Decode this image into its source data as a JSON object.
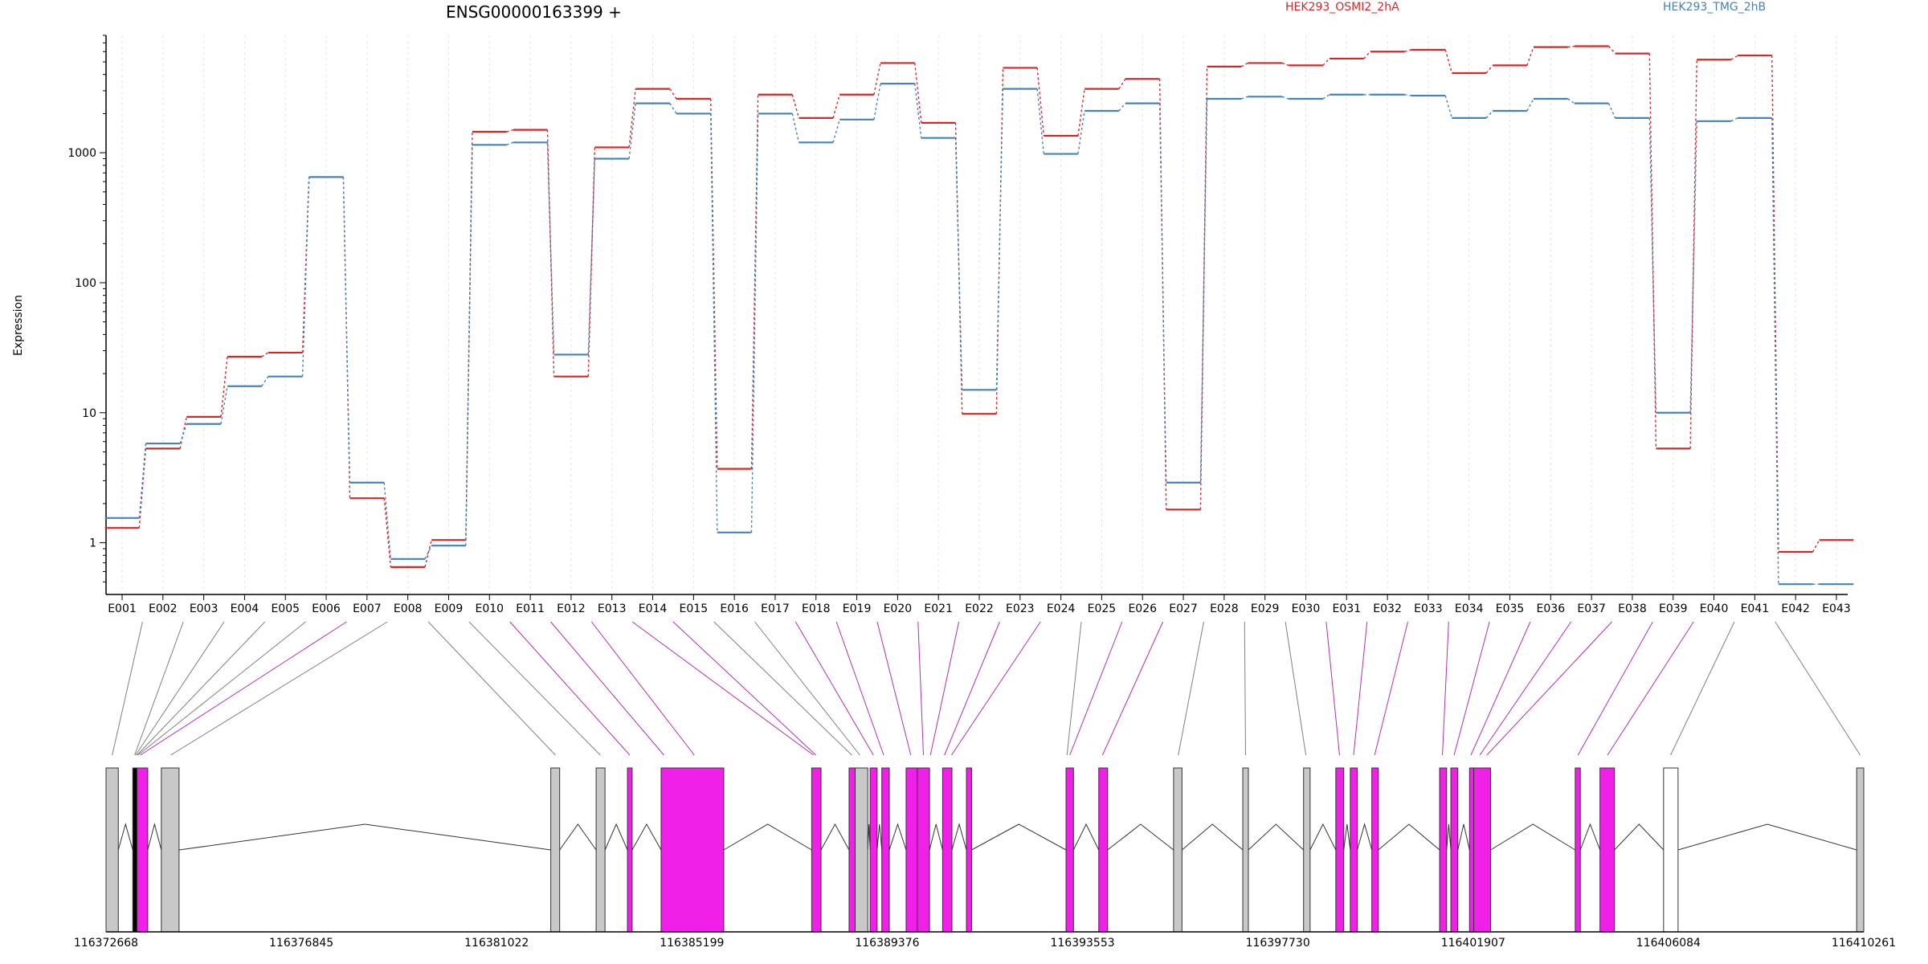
{
  "chart_data": {
    "type": "line",
    "title": "ENSG00000163399 +",
    "ylabel": "Expression",
    "yscale": "log",
    "ylim": [
      0.4,
      8000
    ],
    "yticks": [
      "1",
      "10",
      "100",
      "1000"
    ],
    "yticks_values": [
      1,
      10,
      100,
      1000
    ],
    "categories": [
      "E001",
      "E002",
      "E003",
      "E004",
      "E005",
      "E006",
      "E007",
      "E008",
      "E009",
      "E010",
      "E011",
      "E012",
      "E013",
      "E014",
      "E015",
      "E016",
      "E017",
      "E018",
      "E019",
      "E020",
      "E021",
      "E022",
      "E023",
      "E024",
      "E025",
      "E026",
      "E027",
      "E028",
      "E029",
      "E030",
      "E031",
      "E032",
      "E033",
      "E034",
      "E035",
      "E036",
      "E037",
      "E038",
      "E039",
      "E040",
      "E041",
      "E042",
      "E043"
    ],
    "series": [
      {
        "name": "HEK293_OSMI2_2hA",
        "color": "#d62728",
        "values": [
          1.3,
          5.3,
          9.3,
          27,
          29,
          650,
          2.2,
          0.65,
          1.05,
          1450,
          1500,
          19,
          1100,
          3100,
          2600,
          3.7,
          2800,
          1850,
          2800,
          4900,
          1700,
          9.8,
          4500,
          1350,
          3100,
          3700,
          1.8,
          4600,
          4900,
          4700,
          5300,
          6000,
          6200,
          4100,
          4700,
          6500,
          6600,
          5800,
          5.3,
          5200,
          5600,
          0.85,
          1.05
        ]
      },
      {
        "name": "HEK293_TMG_2hB",
        "color": "#4682b4",
        "values": [
          1.55,
          5.8,
          8.2,
          16,
          19,
          650,
          2.9,
          0.75,
          0.95,
          1150,
          1200,
          28,
          900,
          2400,
          2000,
          1.2,
          2000,
          1200,
          1800,
          3400,
          1300,
          15,
          3100,
          980,
          2100,
          2400,
          2.9,
          2600,
          2700,
          2600,
          2800,
          2800,
          2750,
          1850,
          2100,
          2600,
          2400,
          1850,
          10,
          1750,
          1850,
          0.48,
          0.48
        ]
      }
    ],
    "gene_model": {
      "coords": [
        "116372668",
        "116376845",
        "116381022",
        "116385199",
        "116389376",
        "116393553",
        "116397730",
        "116401907",
        "116406084",
        "116410261"
      ],
      "coord_start": 116372668,
      "coord_end": 116410261,
      "exons": [
        {
          "start": 116372668,
          "end": 116372930,
          "color": "#c8c8c8"
        },
        {
          "start": 116373240,
          "end": 116373330,
          "color": "#000000"
        },
        {
          "start": 116373330,
          "end": 116373560,
          "color": "#f020e8"
        },
        {
          "start": 116373850,
          "end": 116374230,
          "color": "#c8c8c8"
        },
        {
          "start": 116382180,
          "end": 116382370,
          "color": "#c8c8c8"
        },
        {
          "start": 116383150,
          "end": 116383340,
          "color": "#c8c8c8"
        },
        {
          "start": 116383820,
          "end": 116383920,
          "color": "#f020e8"
        },
        {
          "start": 116384540,
          "end": 116385880,
          "color": "#f020e8"
        },
        {
          "start": 116387760,
          "end": 116387960,
          "color": "#f020e8"
        },
        {
          "start": 116388560,
          "end": 116388690,
          "color": "#f020e8"
        },
        {
          "start": 116388690,
          "end": 116388960,
          "color": "#c8c8c8"
        },
        {
          "start": 116389010,
          "end": 116389160,
          "color": "#f020e8"
        },
        {
          "start": 116389260,
          "end": 116389420,
          "color": "#f020e8"
        },
        {
          "start": 116389780,
          "end": 116390020,
          "color": "#f020e8"
        },
        {
          "start": 116390020,
          "end": 116390280,
          "color": "#f020e8"
        },
        {
          "start": 116390560,
          "end": 116390760,
          "color": "#f020e8"
        },
        {
          "start": 116391070,
          "end": 116391180,
          "color": "#f020e8"
        },
        {
          "start": 116393200,
          "end": 116393360,
          "color": "#f020e8"
        },
        {
          "start": 116393900,
          "end": 116394090,
          "color": "#f020e8"
        },
        {
          "start": 116395500,
          "end": 116395680,
          "color": "#c8c8c8"
        },
        {
          "start": 116396980,
          "end": 116397100,
          "color": "#c8c8c8"
        },
        {
          "start": 116398280,
          "end": 116398420,
          "color": "#c8c8c8"
        },
        {
          "start": 116398970,
          "end": 116399140,
          "color": "#f020e8"
        },
        {
          "start": 116399280,
          "end": 116399430,
          "color": "#f020e8"
        },
        {
          "start": 116399740,
          "end": 116399880,
          "color": "#f020e8"
        },
        {
          "start": 116401190,
          "end": 116401340,
          "color": "#f020e8"
        },
        {
          "start": 116401430,
          "end": 116401580,
          "color": "#f020e8"
        },
        {
          "start": 116401830,
          "end": 116401920,
          "color": "#f020e8"
        },
        {
          "start": 116401920,
          "end": 116402280,
          "color": "#f020e8"
        },
        {
          "start": 116404090,
          "end": 116404200,
          "color": "#f020e8"
        },
        {
          "start": 116404620,
          "end": 116404930,
          "color": "#f020e8"
        },
        {
          "start": 116405980,
          "end": 116406290,
          "color": "#ffffff"
        },
        {
          "start": 116410110,
          "end": 116410261,
          "color": "#c8c8c8"
        }
      ],
      "exon_links": [
        {
          "target": 116372800,
          "color": "#808080"
        },
        {
          "target": 116373280,
          "color": "#808080"
        },
        {
          "target": 116373300,
          "color": "#808080"
        },
        {
          "target": 116373330,
          "color": "#808080"
        },
        {
          "target": 116373350,
          "color": "#808080"
        },
        {
          "target": 116373400,
          "color": "#b030b0"
        },
        {
          "target": 116374050,
          "color": "#808080"
        },
        {
          "target": 116382280,
          "color": "#808080"
        },
        {
          "target": 116383240,
          "color": "#808080"
        },
        {
          "target": 116383870,
          "color": "#b030b0"
        },
        {
          "target": 116384600,
          "color": "#b030b0"
        },
        {
          "target": 116385250,
          "color": "#b030b0"
        },
        {
          "target": 116387800,
          "color": "#b030b0"
        },
        {
          "target": 116387850,
          "color": "#b030b0"
        },
        {
          "target": 116388620,
          "color": "#808080"
        },
        {
          "target": 116388790,
          "color": "#808080"
        },
        {
          "target": 116389080,
          "color": "#b030b0"
        },
        {
          "target": 116389300,
          "color": "#b030b0"
        },
        {
          "target": 116389880,
          "color": "#b030b0"
        },
        {
          "target": 116390150,
          "color": "#b030b0"
        },
        {
          "target": 116390300,
          "color": "#b030b0"
        },
        {
          "target": 116390600,
          "color": "#b030b0"
        },
        {
          "target": 116390750,
          "color": "#b030b0"
        },
        {
          "target": 116393220,
          "color": "#808080"
        },
        {
          "target": 116393280,
          "color": "#b030b0"
        },
        {
          "target": 116393980,
          "color": "#b030b0"
        },
        {
          "target": 116395600,
          "color": "#808080"
        },
        {
          "target": 116397040,
          "color": "#808080"
        },
        {
          "target": 116398330,
          "color": "#808080"
        },
        {
          "target": 116399050,
          "color": "#b030b0"
        },
        {
          "target": 116399350,
          "color": "#b030b0"
        },
        {
          "target": 116399800,
          "color": "#b030b0"
        },
        {
          "target": 116401250,
          "color": "#b030b0"
        },
        {
          "target": 116401500,
          "color": "#b030b0"
        },
        {
          "target": 116401860,
          "color": "#b030b0"
        },
        {
          "target": 116402050,
          "color": "#b030b0"
        },
        {
          "target": 116402200,
          "color": "#b030b0"
        },
        {
          "target": 116404150,
          "color": "#b030b0"
        },
        {
          "target": 116404780,
          "color": "#b030b0"
        },
        {
          "target": 116406130,
          "color": "#808080"
        },
        {
          "target": 116410185,
          "color": "#808080"
        }
      ]
    }
  }
}
